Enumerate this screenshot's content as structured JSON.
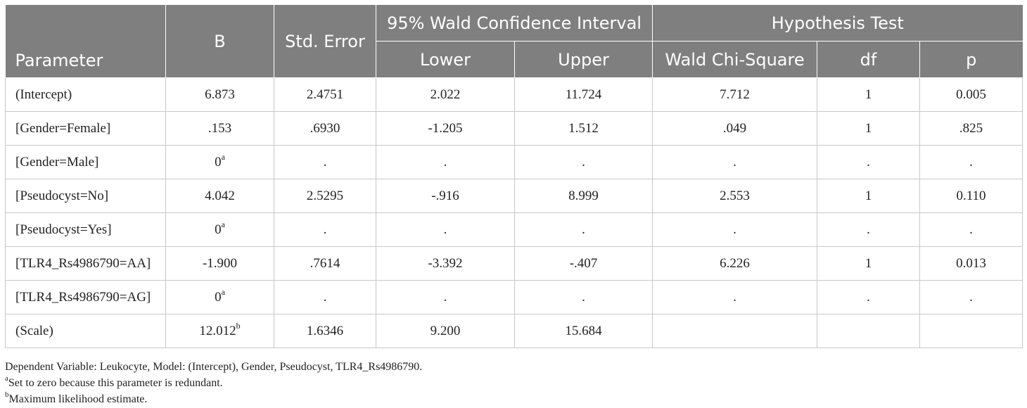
{
  "headers": {
    "parameter": "Parameter",
    "b": "B",
    "std_error": "Std. Error",
    "ci_group": "95% Wald Confidence Interval",
    "lower": "Lower",
    "upper": "Upper",
    "hyp_group": "Hypothesis Test",
    "wald": "Wald Chi-Square",
    "df": "df",
    "p": "p"
  },
  "rows": [
    {
      "param": "(Intercept)",
      "b": "6.873",
      "b_sup": "",
      "se": "2.4751",
      "lower": "2.022",
      "upper": "11.724",
      "wald": "7.712",
      "df": "1",
      "p": "0.005"
    },
    {
      "param": "[Gender=Female]",
      "b": ".153",
      "b_sup": "",
      "se": ".6930",
      "lower": "-1.205",
      "upper": "1.512",
      "wald": ".049",
      "df": "1",
      "p": ".825"
    },
    {
      "param": "[Gender=Male]",
      "b": "0",
      "b_sup": "a",
      "se": ".",
      "lower": ".",
      "upper": ".",
      "wald": ".",
      "df": ".",
      "p": "."
    },
    {
      "param": "[Pseudocyst=No]",
      "b": "4.042",
      "b_sup": "",
      "se": "2.5295",
      "lower": "-.916",
      "upper": "8.999",
      "wald": "2.553",
      "df": "1",
      "p": "0.110"
    },
    {
      "param": "[Pseudocyst=Yes]",
      "b": "0",
      "b_sup": "a",
      "se": ".",
      "lower": ".",
      "upper": ".",
      "wald": ".",
      "df": ".",
      "p": "."
    },
    {
      "param": "[TLR4_Rs4986790=AA]",
      "b": "-1.900",
      "b_sup": "",
      "se": ".7614",
      "lower": "-3.392",
      "upper": "-.407",
      "wald": "6.226",
      "df": "1",
      "p": "0.013"
    },
    {
      "param": "[TLR4_Rs4986790=AG]",
      "b": "0",
      "b_sup": "a",
      "se": ".",
      "lower": ".",
      "upper": ".",
      "wald": ".",
      "df": ".",
      "p": "."
    },
    {
      "param": "(Scale)",
      "b": "12.012",
      "b_sup": "b",
      "se": "1.6346",
      "lower": "9.200",
      "upper": "15.684",
      "wald": "",
      "df": "",
      "p": ""
    }
  ],
  "notes": {
    "line1": "Dependent Variable: Leukocyte, Model: (Intercept), Gender, Pseudocyst, TLR4_Rs4986790.",
    "a_mark": "a",
    "a_text": "Set to zero because this parameter is redundant.",
    "b_mark": "b",
    "b_text": "Maximum likelihood estimate."
  }
}
